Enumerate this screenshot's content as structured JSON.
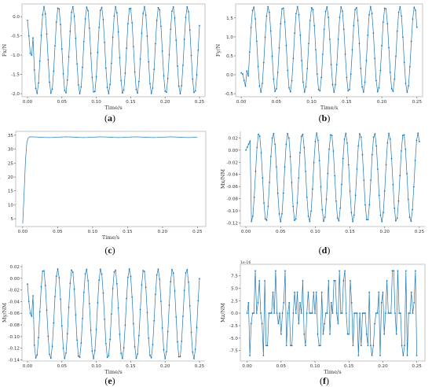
{
  "chart_data": [
    {
      "id": "a",
      "type": "line",
      "caption": "(a)",
      "xlabel": "Time/s",
      "ylabel": "Fx/N",
      "xlim": [
        -0.008,
        0.258
      ],
      "ylim": [
        -2.08,
        0.33
      ],
      "xticks": [
        0.0,
        0.05,
        0.1,
        0.15,
        0.2,
        0.25
      ],
      "xtick_labels": [
        "0.00",
        "0.05",
        "0.10",
        "0.15",
        "0.20",
        "0.25"
      ],
      "yticks": [
        0.0,
        -0.5,
        -1.0,
        -1.5,
        -2.0
      ],
      "ytick_labels": [
        "0.0",
        "-0.5",
        "-1.0",
        "-1.5",
        "-2.0"
      ],
      "signal": {
        "kind": "sine",
        "t0": 0.0,
        "t1": 0.25,
        "n": 126,
        "mean": -0.87,
        "amp": 1.13,
        "freq": 48,
        "phase": 0.6,
        "start": [
          [
            0.0,
            -0.1
          ],
          [
            0.002,
            -0.5
          ],
          [
            0.004,
            -0.95
          ],
          [
            0.006,
            -1.0
          ],
          [
            0.008,
            -0.55
          ]
        ]
      },
      "markers": true,
      "frame": true
    },
    {
      "id": "b",
      "type": "line",
      "caption": "(b)",
      "xlabel": "Time/s",
      "ylabel": "Fy/N",
      "xlim": [
        -0.008,
        0.258
      ],
      "ylim": [
        -0.58,
        1.87
      ],
      "xticks": [
        0.0,
        0.05,
        0.1,
        0.15,
        0.2,
        0.25
      ],
      "xtick_labels": [
        "0.00",
        "0.05",
        "0.10",
        "0.15",
        "0.20",
        "0.25"
      ],
      "yticks": [
        1.5,
        1.0,
        0.5,
        0.0,
        -0.5
      ],
      "ytick_labels": [
        "1.5",
        "1.0",
        "0.5",
        "0.0",
        "-0.5"
      ],
      "signal": {
        "kind": "sine",
        "t0": 0.0,
        "t1": 0.25,
        "n": 126,
        "mean": 0.67,
        "amp": 1.13,
        "freq": 48,
        "phase": 2.6,
        "start": [
          [
            0.0,
            0.05
          ],
          [
            0.002,
            0.02
          ],
          [
            0.004,
            -0.15
          ],
          [
            0.006,
            -0.3
          ],
          [
            0.008,
            0.1
          ]
        ]
      },
      "markers": true,
      "frame": true
    },
    {
      "id": "c",
      "type": "line",
      "caption": "(c)",
      "xlabel": "Time/s",
      "ylabel": "Fz/N",
      "xlim": [
        -0.01,
        0.262
      ],
      "ylim": [
        2.2,
        36.4
      ],
      "xticks": [
        0.0,
        0.05,
        0.1,
        0.15,
        0.2,
        0.25
      ],
      "xtick_labels": [
        "0.00",
        "0.05",
        "0.10",
        "0.15",
        "0.20",
        "0.25"
      ],
      "yticks": [
        35,
        30,
        25,
        20,
        15,
        10,
        5
      ],
      "ytick_labels": [
        "35",
        "30",
        "25",
        "20",
        "15",
        "10",
        "5"
      ],
      "signal": {
        "kind": "step",
        "t0": 0.0,
        "t1": 0.25,
        "n": 126,
        "mean": 34.3,
        "amp": 0.12,
        "freq": 20,
        "phase": 0.0,
        "start": [
          [
            0.0,
            3.2
          ],
          [
            0.002,
            14.0
          ],
          [
            0.004,
            26.0
          ],
          [
            0.006,
            32.5
          ],
          [
            0.008,
            34.0
          ]
        ]
      },
      "markers": false,
      "frame": true
    },
    {
      "id": "d",
      "type": "line",
      "caption": "(d)",
      "xlabel": "",
      "ylabel": "Mx/NM",
      "xlim": [
        -0.008,
        0.258
      ],
      "ylim": [
        -0.126,
        0.031
      ],
      "xticks": [
        0.0,
        0.05,
        0.1,
        0.15,
        0.2,
        0.25
      ],
      "xtick_labels": [
        "0.00",
        "0.05",
        "0.10",
        "0.15",
        "0.20",
        "0.25"
      ],
      "yticks": [
        0.02,
        0.0,
        -0.02,
        -0.04,
        -0.06,
        -0.08,
        -0.1,
        -0.12
      ],
      "ytick_labels": [
        "0.02",
        "0.00",
        "-0.02",
        "-0.04",
        "-0.06",
        "-0.08",
        "-0.10",
        "-0.12"
      ],
      "signal": {
        "kind": "sine",
        "t0": 0.0,
        "t1": 0.25,
        "n": 126,
        "mean": -0.045,
        "amp": 0.073,
        "freq": 48,
        "phase": 2.2,
        "start": [
          [
            0.0,
            0.0
          ],
          [
            0.002,
            0.005
          ],
          [
            0.004,
            0.01
          ],
          [
            0.006,
            0.015
          ]
        ]
      },
      "markers": true,
      "frame": false
    },
    {
      "id": "e",
      "type": "line",
      "caption": "(e)",
      "xlabel": "Time/s",
      "ylabel": "My/NM",
      "xlim": [
        -0.008,
        0.258
      ],
      "ylim": [
        -0.142,
        0.024
      ],
      "xticks": [
        0.0,
        0.05,
        0.1,
        0.15,
        0.2,
        0.25
      ],
      "xtick_labels": [
        "0.00",
        "0.05",
        "0.10",
        "0.15",
        "0.20",
        "0.25"
      ],
      "yticks": [
        0.02,
        0.0,
        -0.02,
        -0.04,
        -0.06,
        -0.08,
        -0.1,
        -0.12,
        -0.14
      ],
      "ytick_labels": [
        "0.02",
        "0.00",
        "-0.02",
        "-0.04",
        "-0.06",
        "-0.08",
        "-0.10",
        "-0.12",
        "-0.14"
      ],
      "signal": {
        "kind": "sine",
        "t0": 0.0,
        "t1": 0.25,
        "n": 126,
        "mean": -0.061,
        "amp": 0.077,
        "freq": 48,
        "phase": 0.9,
        "start": [
          [
            0.0,
            -0.01
          ],
          [
            0.002,
            -0.04
          ],
          [
            0.004,
            -0.06
          ],
          [
            0.006,
            -0.065
          ],
          [
            0.008,
            -0.03
          ]
        ]
      },
      "markers": true,
      "frame": false
    },
    {
      "id": "f",
      "type": "line",
      "caption": "(f)",
      "xlabel": "Time/s",
      "ylabel": "Mz/NM",
      "offset_label": "1e-16",
      "xlim": [
        -0.01,
        0.262
      ],
      "ylim": [
        -9.6,
        9.8
      ],
      "xticks": [
        0.0,
        0.05,
        0.1,
        0.15,
        0.2,
        0.25
      ],
      "xtick_labels": [
        "0.00",
        "0.05",
        "0.10",
        "0.15",
        "0.20",
        "0.25"
      ],
      "yticks": [
        7.5,
        5.0,
        2.5,
        0.0,
        -2.5,
        -5.0,
        -7.5
      ],
      "ytick_labels": [
        "7.5",
        "5.0",
        "2.5",
        "0.0",
        "-2.5",
        "-5.0",
        "-7.5"
      ],
      "signal": {
        "kind": "noise",
        "t0": 0.0,
        "t1": 0.25,
        "n": 126,
        "levels": [
          -8.5,
          -6.5,
          -4.2,
          -2.1,
          0.0,
          2.1,
          4.2,
          6.5,
          8.5
        ],
        "seed": 7
      },
      "markers": true,
      "frame": true
    }
  ]
}
